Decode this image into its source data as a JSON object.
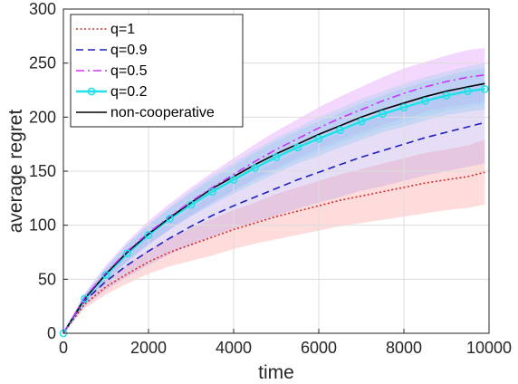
{
  "chart_data": {
    "type": "line",
    "xlabel": "time",
    "ylabel": "average regret",
    "xlim": [
      0,
      10000
    ],
    "ylim": [
      0,
      300
    ],
    "xticks": [
      0,
      2000,
      4000,
      6000,
      8000,
      10000
    ],
    "yticks": [
      0,
      50,
      100,
      150,
      200,
      250,
      300
    ],
    "grid": true,
    "legend_position": "top-left",
    "x": [
      0,
      500,
      1000,
      1500,
      2000,
      2500,
      3000,
      3500,
      4000,
      4500,
      5000,
      5500,
      6000,
      6500,
      7000,
      7500,
      8000,
      8500,
      9000,
      9500,
      9900
    ],
    "series": [
      {
        "name": "q=1",
        "color": "#d62728",
        "style": "dotted",
        "values": [
          0,
          27,
          43,
          55,
          66,
          75,
          82,
          89,
          96,
          102,
          108,
          113,
          118,
          123,
          127,
          131,
          135,
          139,
          142,
          145,
          149
        ],
        "band_halfwidth": [
          0,
          4,
          7,
          9,
          11,
          13,
          15,
          17,
          18,
          19,
          21,
          22,
          23,
          24,
          25,
          26,
          27,
          28,
          28,
          29,
          30
        ],
        "band_color": "#ff9a9a"
      },
      {
        "name": "q=0.9",
        "color": "#1f1fbf",
        "style": "dashed",
        "values": [
          0,
          30,
          48,
          63,
          76,
          88,
          99,
          109,
          118,
          126,
          134,
          142,
          149,
          156,
          163,
          169,
          175,
          181,
          186,
          191,
          195
        ],
        "band_halfwidth": [
          0,
          5,
          8,
          11,
          13,
          15,
          17,
          19,
          21,
          23,
          25,
          27,
          28,
          30,
          31,
          33,
          34,
          35,
          36,
          37,
          38
        ],
        "band_color": "#b8a0e8"
      },
      {
        "name": "q=0.5",
        "color": "#cc33ff",
        "style": "dashdot",
        "values": [
          0,
          33,
          56,
          76,
          93,
          108,
          122,
          135,
          147,
          159,
          170,
          180,
          190,
          199,
          207,
          215,
          222,
          228,
          233,
          237,
          239
        ],
        "band_halfwidth": [
          0,
          4,
          7,
          9,
          11,
          12,
          13,
          14,
          15,
          16,
          17,
          18,
          19,
          20,
          21,
          22,
          23,
          23,
          24,
          25,
          25
        ],
        "band_color": "#e08cf5"
      },
      {
        "name": "q=0.2",
        "color": "#22e0e8",
        "style": "solid-marker",
        "values": [
          0,
          32,
          54,
          74,
          91,
          106,
          119,
          131,
          142,
          153,
          163,
          172,
          180,
          188,
          196,
          203,
          209,
          215,
          220,
          224,
          226
        ],
        "band_halfwidth": [
          0,
          4,
          6,
          8,
          9,
          10,
          11,
          12,
          13,
          14,
          15,
          15,
          16,
          16,
          17,
          17,
          18,
          18,
          18,
          19,
          19
        ],
        "band_color": "#8ec8f0"
      },
      {
        "name": "non-cooperative",
        "color": "#000000",
        "style": "solid",
        "values": [
          0,
          32,
          55,
          75,
          92,
          107,
          121,
          134,
          145,
          156,
          166,
          175,
          184,
          192,
          200,
          207,
          213,
          219,
          224,
          228,
          231
        ],
        "band_halfwidth": [
          0,
          4,
          6,
          8,
          9,
          10,
          11,
          12,
          13,
          14,
          15,
          15,
          16,
          16,
          17,
          17,
          18,
          18,
          18,
          19,
          19
        ],
        "band_color": "#9ad0f0"
      }
    ]
  }
}
